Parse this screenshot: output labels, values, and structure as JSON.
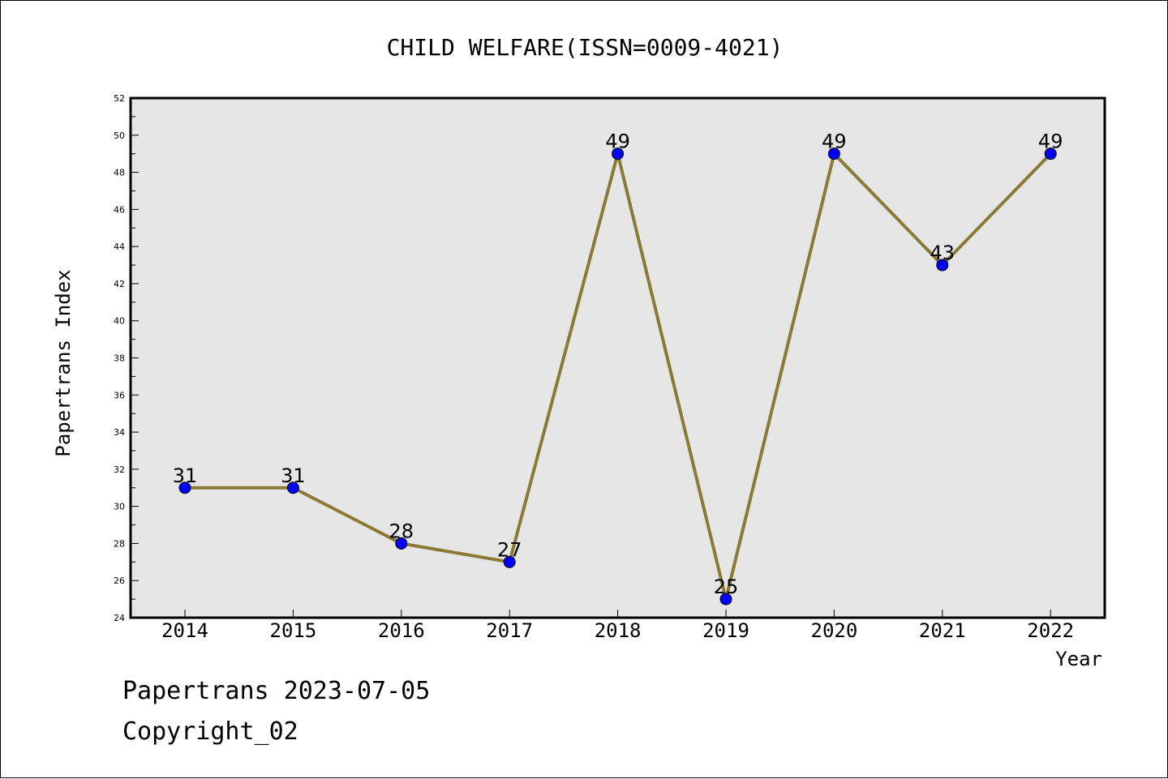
{
  "chart_data": {
    "type": "line",
    "title": "CHILD WELFARE(ISSN=0009-4021)",
    "xlabel": "Year",
    "ylabel": "Papertrans Index",
    "categories": [
      "2014",
      "2015",
      "2016",
      "2017",
      "2018",
      "2019",
      "2020",
      "2021",
      "2022"
    ],
    "series": [
      {
        "values": [
          31,
          31,
          28,
          27,
          49,
          25,
          49,
          43,
          49
        ]
      }
    ],
    "ylim": [
      24,
      52
    ],
    "yticks": [
      24,
      26,
      28,
      30,
      32,
      34,
      36,
      38,
      40,
      42,
      44,
      46,
      48,
      50,
      52
    ],
    "grid": false,
    "legend": "none",
    "colors": {
      "line": "#8b7a35",
      "marker": "#0000ff",
      "plot_background": "#e6e6e6"
    }
  },
  "footer": {
    "line1": "Papertrans 2023-07-05",
    "line2": "Copyright_02"
  }
}
